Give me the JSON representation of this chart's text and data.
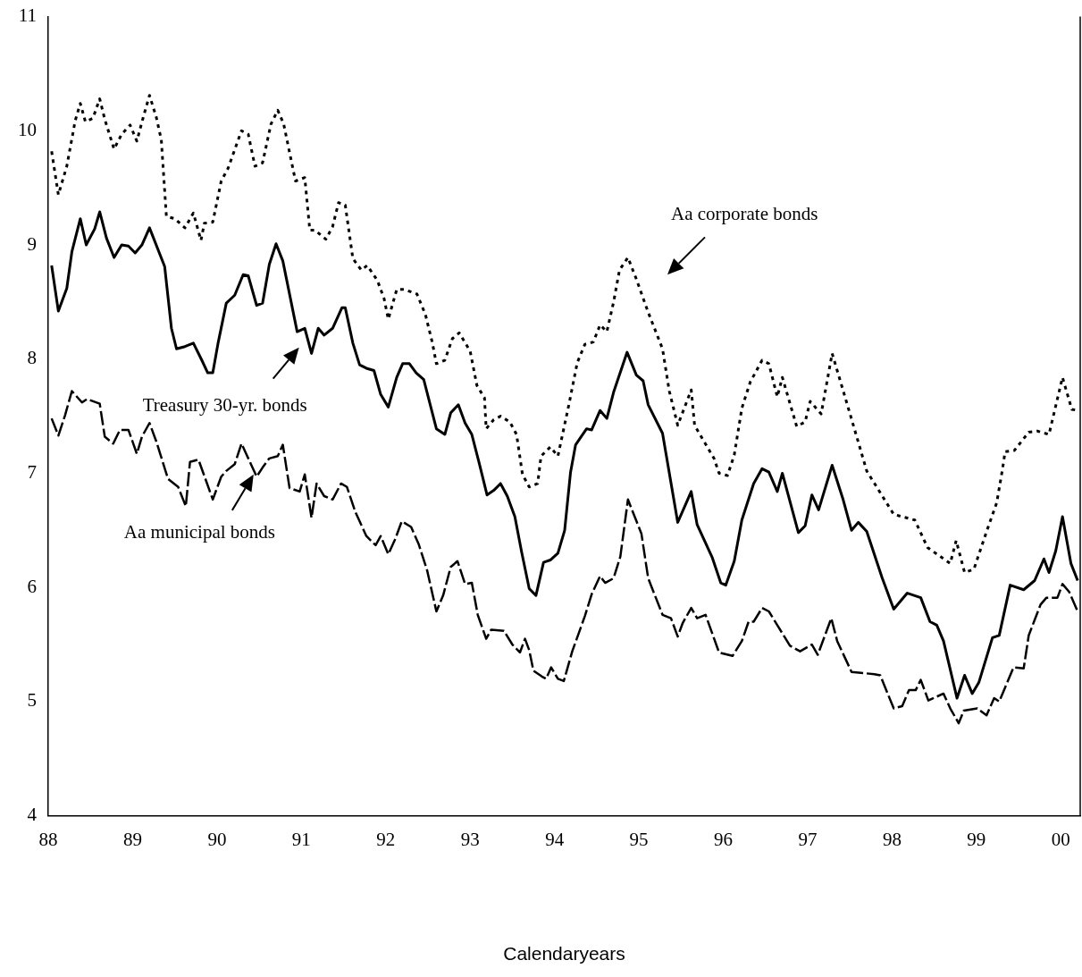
{
  "chart_data": {
    "type": "line",
    "xlabel": "Calendaryears",
    "xlim": [
      1988,
      2000.23
    ],
    "ylim": [
      4,
      11
    ],
    "xticks": [
      {
        "value": 1988,
        "label": "88"
      },
      {
        "value": 1989,
        "label": "89"
      },
      {
        "value": 1990,
        "label": "90"
      },
      {
        "value": 1991,
        "label": "91"
      },
      {
        "value": 1992,
        "label": "92"
      },
      {
        "value": 1993,
        "label": "93"
      },
      {
        "value": 1994,
        "label": "94"
      },
      {
        "value": 1995,
        "label": "95"
      },
      {
        "value": 1996,
        "label": "96"
      },
      {
        "value": 1997,
        "label": "97"
      },
      {
        "value": 1998,
        "label": "98"
      },
      {
        "value": 1999,
        "label": "99"
      },
      {
        "value": 2000,
        "label": "00"
      }
    ],
    "yticks": [
      4,
      5,
      6,
      7,
      8,
      9,
      10,
      11
    ],
    "grid": false,
    "legend": false,
    "marker": "none",
    "series": [
      {
        "color": "#000000",
        "line_style": "dotted",
        "x": [
          1988.04,
          1988.12,
          1988.22,
          1988.32,
          1988.38,
          1988.44,
          1988.53,
          1988.61,
          1988.67,
          1988.78,
          1988.87,
          1988.97,
          1989.05,
          1989.13,
          1989.2,
          1989.28,
          1989.34,
          1989.4,
          1989.5,
          1989.62,
          1989.72,
          1989.81,
          1989.85,
          1989.95,
          1990.05,
          1990.13,
          1990.29,
          1990.37,
          1990.45,
          1990.54,
          1990.64,
          1990.72,
          1990.79,
          1990.93,
          1991.04,
          1991.1,
          1991.16,
          1991.29,
          1991.37,
          1991.44,
          1991.52,
          1991.61,
          1991.71,
          1991.78,
          1991.9,
          1991.98,
          1992.03,
          1992.13,
          1992.22,
          1992.37,
          1992.47,
          1992.55,
          1992.6,
          1992.7,
          1992.79,
          1992.87,
          1993.0,
          1993.08,
          1993.17,
          1993.19,
          1993.28,
          1993.36,
          1993.47,
          1993.55,
          1993.62,
          1993.7,
          1993.8,
          1993.84,
          1993.95,
          1994.04,
          1994.17,
          1994.27,
          1994.36,
          1994.46,
          1994.54,
          1994.62,
          1994.7,
          1994.77,
          1994.87,
          1994.97,
          1995.11,
          1995.28,
          1995.36,
          1995.46,
          1995.62,
          1995.66,
          1995.89,
          1995.95,
          1996.05,
          1996.13,
          1996.22,
          1996.32,
          1996.46,
          1996.54,
          1996.64,
          1996.7,
          1996.87,
          1996.97,
          1997.03,
          1997.16,
          1997.29,
          1997.49,
          1997.7,
          1998.02,
          1998.27,
          1998.42,
          1998.69,
          1998.76,
          1998.86,
          1998.97,
          1999.13,
          1999.24,
          1999.31,
          1999.34,
          1999.45,
          1999.62,
          1999.72,
          1999.86,
          2000.02,
          2000.13,
          2000.2
        ],
        "values": [
          9.82,
          9.44,
          9.69,
          10.09,
          10.24,
          10.08,
          10.11,
          10.28,
          10.1,
          9.84,
          9.97,
          10.05,
          9.91,
          10.13,
          10.31,
          10.12,
          9.92,
          9.25,
          9.23,
          9.15,
          9.28,
          9.04,
          9.19,
          9.2,
          9.56,
          9.67,
          10.0,
          9.97,
          9.69,
          9.72,
          10.06,
          10.18,
          10.06,
          9.56,
          9.59,
          9.13,
          9.13,
          9.05,
          9.16,
          9.37,
          9.35,
          8.88,
          8.78,
          8.82,
          8.69,
          8.53,
          8.35,
          8.61,
          8.61,
          8.57,
          8.39,
          8.15,
          7.96,
          7.99,
          8.18,
          8.23,
          8.07,
          7.77,
          7.66,
          7.39,
          7.47,
          7.5,
          7.45,
          7.34,
          6.99,
          6.88,
          6.91,
          7.15,
          7.23,
          7.15,
          7.6,
          7.97,
          8.13,
          8.15,
          8.3,
          8.24,
          8.5,
          8.78,
          8.89,
          8.7,
          8.41,
          8.09,
          7.72,
          7.42,
          7.73,
          7.42,
          7.13,
          7.0,
          6.98,
          7.16,
          7.57,
          7.8,
          7.99,
          7.96,
          7.67,
          7.84,
          7.41,
          7.45,
          7.63,
          7.52,
          8.05,
          7.55,
          7.02,
          6.64,
          6.59,
          6.35,
          6.21,
          6.41,
          6.13,
          6.16,
          6.51,
          6.74,
          7.04,
          7.19,
          7.2,
          7.36,
          7.37,
          7.34,
          7.84,
          7.56,
          7.55
        ]
      },
      {
        "color": "#000000",
        "line_style": "solid",
        "x": [
          1988.04,
          1988.12,
          1988.22,
          1988.28,
          1988.38,
          1988.45,
          1988.55,
          1988.61,
          1988.69,
          1988.78,
          1988.87,
          1988.95,
          1989.03,
          1989.11,
          1989.2,
          1989.38,
          1989.46,
          1989.52,
          1989.62,
          1989.72,
          1989.82,
          1989.89,
          1989.95,
          1990.01,
          1990.11,
          1990.21,
          1990.31,
          1990.37,
          1990.47,
          1990.54,
          1990.62,
          1990.7,
          1990.78,
          1990.95,
          1991.04,
          1991.12,
          1991.2,
          1991.27,
          1991.37,
          1991.48,
          1991.52,
          1991.61,
          1991.69,
          1991.77,
          1991.86,
          1991.94,
          1992.03,
          1992.13,
          1992.2,
          1992.28,
          1992.36,
          1992.45,
          1992.6,
          1992.7,
          1992.77,
          1992.86,
          1992.94,
          1993.02,
          1993.11,
          1993.2,
          1993.28,
          1993.36,
          1993.44,
          1993.53,
          1993.61,
          1993.7,
          1993.78,
          1993.87,
          1993.95,
          1994.04,
          1994.12,
          1994.19,
          1994.25,
          1994.38,
          1994.44,
          1994.54,
          1994.62,
          1994.7,
          1994.86,
          1994.97,
          1995.05,
          1995.11,
          1995.28,
          1995.46,
          1995.62,
          1995.69,
          1995.87,
          1995.97,
          1996.03,
          1996.13,
          1996.22,
          1996.36,
          1996.46,
          1996.54,
          1996.64,
          1996.7,
          1996.89,
          1996.97,
          1997.05,
          1997.13,
          1997.29,
          1997.42,
          1997.52,
          1997.6,
          1997.7,
          1997.88,
          1998.02,
          1998.18,
          1998.34,
          1998.45,
          1998.53,
          1998.61,
          1998.77,
          1998.86,
          1998.95,
          1999.03,
          1999.19,
          1999.27,
          1999.4,
          1999.56,
          1999.69,
          1999.8,
          1999.86,
          1999.94,
          2000.02,
          2000.12,
          2000.2
        ],
        "values": [
          8.82,
          8.42,
          8.62,
          8.94,
          9.23,
          9.0,
          9.14,
          9.29,
          9.06,
          8.89,
          9.0,
          8.99,
          8.93,
          9.0,
          9.15,
          8.81,
          8.27,
          8.09,
          8.11,
          8.14,
          7.99,
          7.88,
          7.88,
          8.13,
          8.49,
          8.56,
          8.74,
          8.73,
          8.47,
          8.49,
          8.83,
          9.01,
          8.86,
          8.24,
          8.27,
          8.05,
          8.27,
          8.21,
          8.27,
          8.45,
          8.45,
          8.14,
          7.95,
          7.92,
          7.9,
          7.69,
          7.58,
          7.84,
          7.96,
          7.96,
          7.88,
          7.82,
          7.39,
          7.34,
          7.53,
          7.6,
          7.44,
          7.34,
          7.08,
          6.81,
          6.85,
          6.91,
          6.8,
          6.62,
          6.31,
          5.99,
          5.93,
          6.22,
          6.24,
          6.3,
          6.5,
          7.01,
          7.25,
          7.39,
          7.38,
          7.55,
          7.48,
          7.71,
          8.06,
          7.86,
          7.81,
          7.6,
          7.35,
          6.57,
          6.84,
          6.55,
          6.26,
          6.04,
          6.02,
          6.23,
          6.59,
          6.91,
          7.04,
          7.01,
          6.84,
          7.0,
          6.48,
          6.54,
          6.81,
          6.68,
          7.07,
          6.77,
          6.5,
          6.57,
          6.49,
          6.09,
          5.81,
          5.95,
          5.91,
          5.7,
          5.67,
          5.53,
          5.03,
          5.23,
          5.07,
          5.17,
          5.56,
          5.58,
          6.02,
          5.98,
          6.06,
          6.25,
          6.13,
          6.32,
          6.62,
          6.21,
          6.06
        ]
      },
      {
        "color": "#000000",
        "line_style": "dashed",
        "x": [
          1988.04,
          1988.12,
          1988.2,
          1988.28,
          1988.4,
          1988.46,
          1988.61,
          1988.67,
          1988.77,
          1988.85,
          1988.95,
          1989.05,
          1989.11,
          1989.2,
          1989.28,
          1989.42,
          1989.54,
          1989.63,
          1989.68,
          1989.78,
          1989.95,
          1990.05,
          1990.11,
          1990.21,
          1990.29,
          1990.47,
          1990.54,
          1990.62,
          1990.72,
          1990.78,
          1990.86,
          1990.98,
          1991.04,
          1991.12,
          1991.18,
          1991.27,
          1991.37,
          1991.47,
          1991.54,
          1991.64,
          1991.77,
          1991.88,
          1991.94,
          1992.03,
          1992.11,
          1992.19,
          1992.3,
          1992.39,
          1992.49,
          1992.6,
          1992.68,
          1992.77,
          1992.85,
          1992.94,
          1993.02,
          1993.09,
          1993.19,
          1993.25,
          1993.4,
          1993.5,
          1993.59,
          1993.65,
          1993.7,
          1993.75,
          1993.85,
          1993.9,
          1993.96,
          1994.04,
          1994.11,
          1994.21,
          1994.36,
          1994.44,
          1994.54,
          1994.6,
          1994.7,
          1994.78,
          1994.87,
          1995.03,
          1995.11,
          1995.28,
          1995.38,
          1995.46,
          1995.52,
          1995.62,
          1995.69,
          1995.79,
          1995.95,
          1996.11,
          1996.22,
          1996.3,
          1996.36,
          1996.46,
          1996.54,
          1996.64,
          1996.79,
          1996.91,
          1997.05,
          1997.12,
          1997.28,
          1997.35,
          1997.52,
          1997.79,
          1997.86,
          1998.02,
          1998.12,
          1998.2,
          1998.28,
          1998.34,
          1998.43,
          1998.61,
          1998.69,
          1998.79,
          1998.85,
          1999.01,
          1999.12,
          1999.21,
          1999.27,
          1999.44,
          1999.56,
          1999.62,
          1999.76,
          1999.83,
          1999.96,
          2000.02,
          2000.1,
          2000.2
        ],
        "values": [
          7.48,
          7.33,
          7.51,
          7.72,
          7.62,
          7.65,
          7.61,
          7.32,
          7.26,
          7.38,
          7.38,
          7.17,
          7.32,
          7.44,
          7.28,
          6.95,
          6.88,
          6.71,
          7.1,
          7.12,
          6.77,
          6.97,
          7.02,
          7.08,
          7.26,
          6.97,
          7.05,
          7.13,
          7.15,
          7.25,
          6.87,
          6.84,
          6.99,
          6.61,
          6.91,
          6.8,
          6.77,
          6.91,
          6.88,
          6.66,
          6.45,
          6.37,
          6.45,
          6.29,
          6.42,
          6.58,
          6.53,
          6.38,
          6.15,
          5.79,
          5.93,
          6.18,
          6.23,
          6.03,
          6.04,
          5.76,
          5.55,
          5.63,
          5.62,
          5.5,
          5.43,
          5.55,
          5.45,
          5.27,
          5.22,
          5.2,
          5.3,
          5.2,
          5.18,
          5.44,
          5.75,
          5.94,
          6.1,
          6.04,
          6.08,
          6.27,
          6.77,
          6.47,
          6.08,
          5.76,
          5.73,
          5.57,
          5.69,
          5.82,
          5.73,
          5.76,
          5.43,
          5.4,
          5.53,
          5.7,
          5.7,
          5.82,
          5.79,
          5.67,
          5.49,
          5.44,
          5.5,
          5.41,
          5.73,
          5.53,
          5.26,
          5.24,
          5.23,
          4.94,
          4.96,
          5.1,
          5.1,
          5.19,
          5.01,
          5.07,
          4.94,
          4.81,
          4.92,
          4.94,
          4.88,
          5.03,
          5.0,
          5.3,
          5.29,
          5.58,
          5.85,
          5.91,
          5.91,
          6.03,
          5.96,
          5.79
        ]
      }
    ],
    "annotations": [
      "Aa corporate bonds",
      "Treasury 30-yr. bonds",
      "Aa municipal bonds"
    ]
  }
}
